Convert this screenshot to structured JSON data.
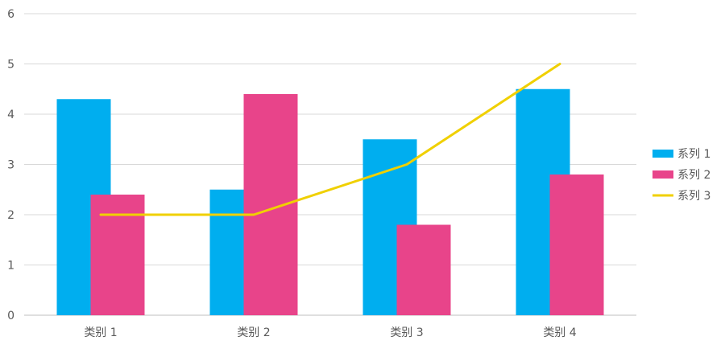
{
  "chart_data": {
    "type": "bar",
    "combo": "bar+line",
    "categories": [
      "类别 1",
      "类别 2",
      "类别 3",
      "类别 4"
    ],
    "series": [
      {
        "name": "系列 1",
        "type": "bar",
        "color": "#00AEEF",
        "values": [
          4.3,
          2.5,
          3.5,
          4.5
        ]
      },
      {
        "name": "系列 2",
        "type": "bar",
        "color": "#E8448A",
        "values": [
          2.4,
          4.4,
          1.8,
          2.8
        ]
      },
      {
        "name": "系列 3",
        "type": "line",
        "color": "#F0D000",
        "values": [
          2,
          2,
          3,
          5
        ]
      }
    ],
    "ylim": [
      0,
      6
    ],
    "yticks": [
      0,
      1,
      2,
      3,
      4,
      5,
      6
    ],
    "grid": true,
    "legend": "right",
    "title": "",
    "xlabel": "",
    "ylabel": ""
  }
}
